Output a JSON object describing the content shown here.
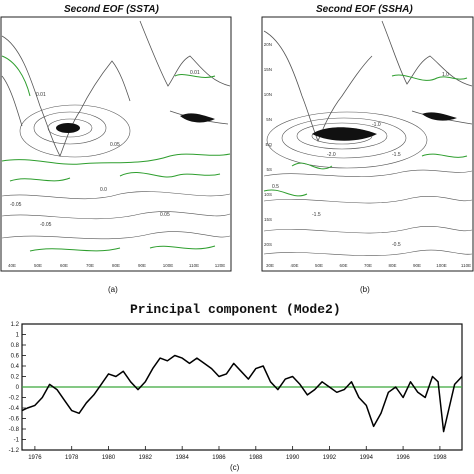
{
  "panels": {
    "a": {
      "title": "Second EOF (SSTA)",
      "caption": "(a)",
      "x_ticks": [
        "40E",
        "50E",
        "60E",
        "70E",
        "80E",
        "90E",
        "100E",
        "110E",
        "120E"
      ],
      "contour_labels": [
        "0.01",
        "0.05",
        "-0.05",
        "0.0",
        "-0.05",
        "0.05",
        "0.01"
      ]
    },
    "b": {
      "title": "Second EOF (SSHA)",
      "caption": "(b)",
      "x_ticks": [
        "30E",
        "40E",
        "50E",
        "60E",
        "70E",
        "80E",
        "90E",
        "100E",
        "110E"
      ],
      "y_ticks": [
        "20N",
        "15N",
        "10N",
        "5N",
        "EQ",
        "5S",
        "10S",
        "15S",
        "20S"
      ],
      "contour_labels": [
        "-1.0",
        "-1.5",
        "-2.0",
        "0.5",
        "-1.5",
        "-0.5",
        "1.0"
      ]
    },
    "c": {
      "title": "Principal component (Mode2)",
      "caption": "(c)"
    }
  },
  "colors": {
    "contour_gray": "#555555",
    "contour_green": "#2e9e2e",
    "zero_line": "#3aa63a",
    "series": "#000000"
  },
  "chart_data": {
    "type": "line",
    "title": "Principal component (Mode2)",
    "xlim": [
      1975.3,
      1999.2
    ],
    "ylim": [
      -1.2,
      1.2
    ],
    "x_ticks": [
      1976,
      1978,
      1980,
      1982,
      1984,
      1986,
      1988,
      1990,
      1992,
      1994,
      1996,
      1998
    ],
    "y_ticks": [
      1.2,
      1,
      0.8,
      0.6,
      0.4,
      0.2,
      0,
      -0.2,
      -0.4,
      -0.6,
      -0.8,
      -1,
      -1.2
    ],
    "reference_line": 0,
    "series": [
      {
        "x": [
          1975.3,
          1975.6,
          1976.0,
          1976.4,
          1976.8,
          1977.2,
          1977.6,
          1978.0,
          1978.4,
          1978.8,
          1979.2,
          1979.6,
          1980.0,
          1980.4,
          1980.8,
          1981.2,
          1981.6,
          1982.0,
          1982.4,
          1982.8,
          1983.2,
          1983.6,
          1984.0,
          1984.4,
          1984.8,
          1985.2,
          1985.6,
          1986.0,
          1986.4,
          1986.8,
          1987.2,
          1987.6,
          1988.0,
          1988.4,
          1988.8,
          1989.2,
          1989.6,
          1990.0,
          1990.4,
          1990.8,
          1991.2,
          1991.6,
          1992.0,
          1992.4,
          1992.8,
          1993.2,
          1993.6,
          1994.0,
          1994.4,
          1994.8,
          1995.2,
          1995.6,
          1996.0,
          1996.4,
          1996.8,
          1997.2,
          1997.6,
          1997.9,
          1998.2,
          1998.5,
          1998.8,
          1999.2
        ],
        "values": [
          -0.45,
          -0.4,
          -0.35,
          -0.2,
          0.05,
          -0.05,
          -0.25,
          -0.45,
          -0.5,
          -0.3,
          -0.15,
          0.05,
          0.25,
          0.2,
          0.3,
          0.1,
          -0.05,
          0.1,
          0.35,
          0.55,
          0.5,
          0.6,
          0.55,
          0.45,
          0.55,
          0.45,
          0.35,
          0.2,
          0.25,
          0.45,
          0.3,
          0.15,
          0.35,
          0.4,
          0.1,
          -0.05,
          0.15,
          0.2,
          0.05,
          -0.15,
          -0.05,
          0.1,
          0.0,
          -0.1,
          -0.05,
          0.1,
          -0.2,
          -0.35,
          -0.75,
          -0.5,
          -0.1,
          0.0,
          -0.2,
          0.1,
          -0.1,
          -0.2,
          0.2,
          0.1,
          -0.85,
          -0.4,
          0.05,
          0.2
        ]
      }
    ]
  }
}
